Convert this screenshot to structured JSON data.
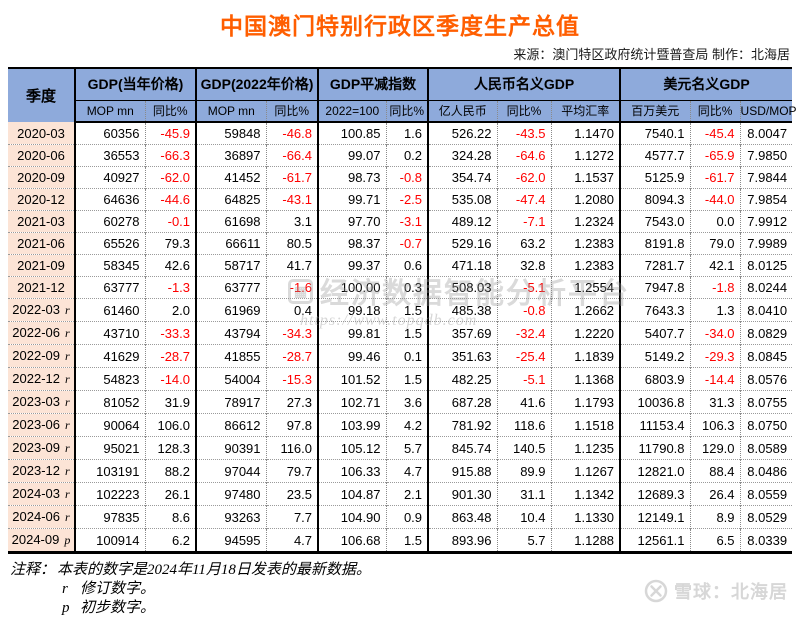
{
  "header": {
    "title": "中国澳门特别行政区季度生产总值",
    "source": "来源：澳门特区政府统计暨普查局  制作：北海居"
  },
  "colors": {
    "title_orange": "#FF5E00",
    "header_blue": "#8EAADB",
    "quarter_peach": "#FCE4D6",
    "negative_red": "#FF0000"
  },
  "chart_data": {
    "type": "table",
    "title": "中国澳门特别行政区季度生产总值",
    "corner": "季度",
    "groups": [
      {
        "label": "GDP(当年价格)",
        "sub": [
          "MOP mn",
          "同比%"
        ]
      },
      {
        "label": "GDP(2022年价格)",
        "sub": [
          "MOP mn",
          "同比%"
        ]
      },
      {
        "label": "GDP平减指数",
        "sub": [
          "2022=100",
          "同比%"
        ]
      },
      {
        "label": "人民币名义GDP",
        "sub": [
          "亿人民币",
          "同比%",
          "平均汇率"
        ]
      },
      {
        "label": "美元名义GDP",
        "sub": [
          "百万美元",
          "同比%",
          "USD/MOP"
        ]
      }
    ],
    "rows": [
      {
        "q": "2020-03",
        "mark": "",
        "c": [
          "60356",
          "-45.9",
          "59848",
          "-46.8",
          "100.85",
          "1.6",
          "526.22",
          "-43.5",
          "1.1470",
          "7540.1",
          "-45.4",
          "8.0047"
        ]
      },
      {
        "q": "2020-06",
        "mark": "",
        "c": [
          "36553",
          "-66.3",
          "36897",
          "-66.4",
          "99.07",
          "0.2",
          "324.28",
          "-64.6",
          "1.1272",
          "4577.7",
          "-65.9",
          "7.9850"
        ]
      },
      {
        "q": "2020-09",
        "mark": "",
        "c": [
          "40927",
          "-62.0",
          "41452",
          "-61.7",
          "98.73",
          "-0.8",
          "354.74",
          "-62.0",
          "1.1537",
          "5125.9",
          "-61.7",
          "7.9844"
        ]
      },
      {
        "q": "2020-12",
        "mark": "",
        "c": [
          "64636",
          "-44.6",
          "64825",
          "-43.1",
          "99.71",
          "-2.5",
          "535.08",
          "-47.4",
          "1.2080",
          "8094.3",
          "-44.0",
          "7.9854"
        ]
      },
      {
        "q": "2021-03",
        "mark": "",
        "c": [
          "60278",
          "-0.1",
          "61698",
          "3.1",
          "97.70",
          "-3.1",
          "489.12",
          "-7.1",
          "1.2324",
          "7543.0",
          "0.0",
          "7.9912"
        ]
      },
      {
        "q": "2021-06",
        "mark": "",
        "c": [
          "65526",
          "79.3",
          "66611",
          "80.5",
          "98.37",
          "-0.7",
          "529.16",
          "63.2",
          "1.2383",
          "8191.8",
          "79.0",
          "7.9989"
        ]
      },
      {
        "q": "2021-09",
        "mark": "",
        "c": [
          "58345",
          "42.6",
          "58717",
          "41.7",
          "99.37",
          "0.6",
          "471.18",
          "32.8",
          "1.2383",
          "7281.7",
          "42.1",
          "8.0125"
        ]
      },
      {
        "q": "2021-12",
        "mark": "",
        "c": [
          "63777",
          "-1.3",
          "63777",
          "-1.6",
          "100.00",
          "0.3",
          "508.03",
          "-5.1",
          "1.2554",
          "7947.8",
          "-1.8",
          "8.0244"
        ]
      },
      {
        "q": "2022-03",
        "mark": "r",
        "c": [
          "61460",
          "2.0",
          "61969",
          "0.4",
          "99.18",
          "1.5",
          "485.38",
          "-0.8",
          "1.2662",
          "7643.3",
          "1.3",
          "8.0410"
        ]
      },
      {
        "q": "2022-06",
        "mark": "r",
        "c": [
          "43710",
          "-33.3",
          "43794",
          "-34.3",
          "99.81",
          "1.5",
          "357.69",
          "-32.4",
          "1.2220",
          "5407.7",
          "-34.0",
          "8.0829"
        ]
      },
      {
        "q": "2022-09",
        "mark": "r",
        "c": [
          "41629",
          "-28.7",
          "41855",
          "-28.7",
          "99.46",
          "0.1",
          "351.63",
          "-25.4",
          "1.1839",
          "5149.2",
          "-29.3",
          "8.0845"
        ]
      },
      {
        "q": "2022-12",
        "mark": "r",
        "c": [
          "54823",
          "-14.0",
          "54004",
          "-15.3",
          "101.52",
          "1.5",
          "482.25",
          "-5.1",
          "1.1368",
          "6803.9",
          "-14.4",
          "8.0576"
        ]
      },
      {
        "q": "2023-03",
        "mark": "r",
        "c": [
          "81052",
          "31.9",
          "78917",
          "27.3",
          "102.71",
          "3.6",
          "687.28",
          "41.6",
          "1.1793",
          "10036.8",
          "31.3",
          "8.0755"
        ]
      },
      {
        "q": "2023-06",
        "mark": "r",
        "c": [
          "90064",
          "106.0",
          "86612",
          "97.8",
          "103.99",
          "4.2",
          "781.92",
          "118.6",
          "1.1518",
          "11153.4",
          "106.3",
          "8.0750"
        ]
      },
      {
        "q": "2023-09",
        "mark": "r",
        "c": [
          "95021",
          "128.3",
          "90391",
          "116.0",
          "105.12",
          "5.7",
          "845.74",
          "140.5",
          "1.1235",
          "11790.8",
          "129.0",
          "8.0589"
        ]
      },
      {
        "q": "2023-12",
        "mark": "r",
        "c": [
          "103191",
          "88.2",
          "97044",
          "79.7",
          "106.33",
          "4.7",
          "915.88",
          "89.9",
          "1.1267",
          "12821.0",
          "88.4",
          "8.0486"
        ]
      },
      {
        "q": "2024-03",
        "mark": "r",
        "c": [
          "102223",
          "26.1",
          "97480",
          "23.5",
          "104.87",
          "2.1",
          "901.30",
          "31.1",
          "1.1342",
          "12689.3",
          "26.4",
          "8.0559"
        ]
      },
      {
        "q": "2024-06",
        "mark": "r",
        "c": [
          "97835",
          "8.6",
          "93263",
          "7.7",
          "104.90",
          "0.9",
          "863.48",
          "10.4",
          "1.1330",
          "12149.1",
          "8.9",
          "8.0529"
        ]
      },
      {
        "q": "2024-09",
        "mark": "p",
        "c": [
          "100914",
          "6.2",
          "94595",
          "4.7",
          "106.68",
          "1.5",
          "893.96",
          "5.7",
          "1.1288",
          "12561.1",
          "6.5",
          "8.0339"
        ]
      }
    ]
  },
  "notes": {
    "label": "注释：",
    "main": "本表的数字是2024年11月18日发表的最新数据。",
    "items": [
      {
        "mark": "r",
        "text": "修订数字。"
      },
      {
        "mark": "p",
        "text": "初步数字。"
      }
    ]
  },
  "watermark": {
    "platform": "经济数据智能分析平台",
    "url": "https://www.topqdb.com"
  },
  "brand": {
    "text": "雪球：北海居"
  }
}
